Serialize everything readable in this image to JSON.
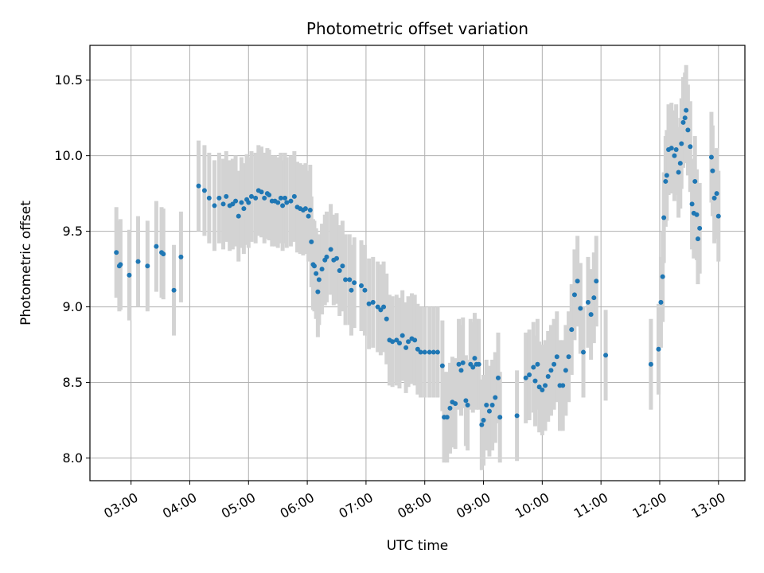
{
  "chart_data": {
    "type": "scatter",
    "title": "Photometric offset variation",
    "xlabel": "UTC time",
    "ylabel": "Photometric offset",
    "x_unit": "hours UTC",
    "xlim": [
      2.3,
      13.45
    ],
    "ylim": [
      7.85,
      10.73
    ],
    "grid": true,
    "x_ticks": [
      {
        "value": 3,
        "label": "03:00"
      },
      {
        "value": 4,
        "label": "04:00"
      },
      {
        "value": 5,
        "label": "05:00"
      },
      {
        "value": 6,
        "label": "06:00"
      },
      {
        "value": 7,
        "label": "07:00"
      },
      {
        "value": 8,
        "label": "08:00"
      },
      {
        "value": 9,
        "label": "09:00"
      },
      {
        "value": 10,
        "label": "10:00"
      },
      {
        "value": 11,
        "label": "11:00"
      },
      {
        "value": 12,
        "label": "12:00"
      },
      {
        "value": 13,
        "label": "13:00"
      }
    ],
    "y_ticks": [
      {
        "value": 8.0,
        "label": "8.0"
      },
      {
        "value": 8.5,
        "label": "8.5"
      },
      {
        "value": 9.0,
        "label": "9.0"
      },
      {
        "value": 9.5,
        "label": "9.5"
      },
      {
        "value": 10.0,
        "label": "10.0"
      },
      {
        "value": 10.5,
        "label": "10.5"
      }
    ],
    "colors": {
      "points": "#1f77b4",
      "error_bars": "#d3d3d3",
      "grid": "#b0b0b0"
    },
    "series": [
      {
        "error_bar_halfwidth": 0.3,
        "points": [
          [
            2.75,
            9.36
          ],
          [
            2.8,
            9.27
          ],
          [
            2.82,
            9.28
          ],
          [
            2.97,
            9.21
          ],
          [
            3.12,
            9.3
          ],
          [
            3.28,
            9.27
          ],
          [
            3.43,
            9.4
          ],
          [
            3.52,
            9.36
          ],
          [
            3.55,
            9.35
          ],
          [
            3.73,
            9.11
          ],
          [
            3.85,
            9.33
          ],
          [
            4.15,
            9.8
          ],
          [
            4.25,
            9.77
          ],
          [
            4.33,
            9.72
          ],
          [
            4.42,
            9.67
          ],
          [
            4.5,
            9.72
          ],
          [
            4.57,
            9.68
          ],
          [
            4.62,
            9.73
          ],
          [
            4.68,
            9.67
          ],
          [
            4.73,
            9.68
          ],
          [
            4.78,
            9.7
          ],
          [
            4.83,
            9.6
          ],
          [
            4.88,
            9.69
          ],
          [
            4.92,
            9.65
          ],
          [
            4.97,
            9.71
          ],
          [
            5.0,
            9.69
          ],
          [
            5.05,
            9.73
          ],
          [
            5.12,
            9.72
          ],
          [
            5.17,
            9.77
          ],
          [
            5.22,
            9.76
          ],
          [
            5.27,
            9.72
          ],
          [
            5.32,
            9.75
          ],
          [
            5.35,
            9.74
          ],
          [
            5.4,
            9.7
          ],
          [
            5.45,
            9.7
          ],
          [
            5.5,
            9.69
          ],
          [
            5.55,
            9.72
          ],
          [
            5.58,
            9.67
          ],
          [
            5.62,
            9.72
          ],
          [
            5.65,
            9.69
          ],
          [
            5.72,
            9.7
          ],
          [
            5.78,
            9.73
          ],
          [
            5.83,
            9.66
          ],
          [
            5.88,
            9.65
          ],
          [
            5.93,
            9.64
          ],
          [
            5.97,
            9.65
          ],
          [
            6.02,
            9.6
          ],
          [
            6.05,
            9.64
          ],
          [
            6.07,
            9.43
          ],
          [
            6.1,
            9.28
          ],
          [
            6.12,
            9.27
          ],
          [
            6.15,
            9.22
          ],
          [
            6.18,
            9.1
          ],
          [
            6.2,
            9.18
          ],
          [
            6.25,
            9.25
          ],
          [
            6.3,
            9.31
          ],
          [
            6.33,
            9.33
          ],
          [
            6.4,
            9.38
          ],
          [
            6.45,
            9.31
          ],
          [
            6.5,
            9.32
          ],
          [
            6.55,
            9.24
          ],
          [
            6.6,
            9.27
          ],
          [
            6.65,
            9.18
          ],
          [
            6.72,
            9.18
          ],
          [
            6.75,
            9.11
          ],
          [
            6.8,
            9.16
          ],
          [
            6.92,
            9.14
          ],
          [
            6.98,
            9.11
          ],
          [
            7.05,
            9.02
          ],
          [
            7.12,
            9.03
          ],
          [
            7.2,
            9.0
          ],
          [
            7.25,
            8.98
          ],
          [
            7.3,
            9.0
          ],
          [
            7.35,
            8.92
          ],
          [
            7.4,
            8.78
          ],
          [
            7.45,
            8.77
          ],
          [
            7.52,
            8.78
          ],
          [
            7.57,
            8.76
          ],
          [
            7.62,
            8.81
          ],
          [
            7.68,
            8.73
          ],
          [
            7.72,
            8.77
          ],
          [
            7.78,
            8.79
          ],
          [
            7.83,
            8.78
          ],
          [
            7.88,
            8.72
          ],
          [
            7.93,
            8.7
          ],
          [
            8.0,
            8.7
          ],
          [
            8.08,
            8.7
          ],
          [
            8.15,
            8.7
          ],
          [
            8.22,
            8.7
          ],
          [
            8.3,
            8.61
          ],
          [
            8.33,
            8.27
          ],
          [
            8.38,
            8.27
          ],
          [
            8.43,
            8.33
          ],
          [
            8.47,
            8.37
          ],
          [
            8.52,
            8.36
          ],
          [
            8.58,
            8.62
          ],
          [
            8.62,
            8.58
          ],
          [
            8.65,
            8.63
          ],
          [
            8.7,
            8.38
          ],
          [
            8.73,
            8.35
          ],
          [
            8.78,
            8.62
          ],
          [
            8.82,
            8.6
          ],
          [
            8.85,
            8.66
          ],
          [
            8.88,
            8.62
          ],
          [
            8.92,
            8.62
          ],
          [
            8.97,
            8.22
          ],
          [
            9.0,
            8.25
          ],
          [
            9.05,
            8.35
          ],
          [
            9.1,
            8.31
          ],
          [
            9.15,
            8.35
          ],
          [
            9.2,
            8.4
          ],
          [
            9.25,
            8.53
          ],
          [
            9.28,
            8.27
          ],
          [
            9.57,
            8.28
          ],
          [
            9.72,
            8.53
          ],
          [
            9.78,
            8.55
          ],
          [
            9.85,
            8.6
          ],
          [
            9.88,
            8.51
          ],
          [
            9.92,
            8.62
          ],
          [
            9.95,
            8.47
          ],
          [
            10.0,
            8.45
          ],
          [
            10.05,
            8.48
          ],
          [
            10.1,
            8.54
          ],
          [
            10.15,
            8.58
          ],
          [
            10.2,
            8.62
          ],
          [
            10.25,
            8.67
          ],
          [
            10.3,
            8.48
          ],
          [
            10.35,
            8.48
          ],
          [
            10.4,
            8.58
          ],
          [
            10.45,
            8.67
          ],
          [
            10.5,
            8.85
          ],
          [
            10.55,
            9.08
          ],
          [
            10.6,
            9.17
          ],
          [
            10.65,
            8.99
          ],
          [
            10.7,
            8.7
          ],
          [
            10.78,
            9.03
          ],
          [
            10.83,
            8.95
          ],
          [
            10.88,
            9.06
          ],
          [
            10.92,
            9.17
          ],
          [
            11.08,
            8.68
          ],
          [
            11.85,
            8.62
          ],
          [
            11.98,
            8.72
          ],
          [
            12.02,
            9.03
          ],
          [
            12.05,
            9.2
          ],
          [
            12.07,
            9.59
          ],
          [
            12.1,
            9.83
          ],
          [
            12.12,
            9.87
          ],
          [
            12.15,
            10.04
          ],
          [
            12.2,
            10.05
          ],
          [
            12.25,
            10.0
          ],
          [
            12.28,
            10.04
          ],
          [
            12.32,
            9.89
          ],
          [
            12.35,
            9.95
          ],
          [
            12.37,
            10.08
          ],
          [
            12.4,
            10.22
          ],
          [
            12.43,
            10.25
          ],
          [
            12.45,
            10.3
          ],
          [
            12.48,
            10.17
          ],
          [
            12.52,
            10.06
          ],
          [
            12.55,
            9.68
          ],
          [
            12.58,
            9.62
          ],
          [
            12.6,
            9.83
          ],
          [
            12.63,
            9.61
          ],
          [
            12.65,
            9.45
          ],
          [
            12.68,
            9.52
          ],
          [
            12.88,
            9.99
          ],
          [
            12.9,
            9.9
          ],
          [
            12.93,
            9.72
          ],
          [
            12.97,
            9.75
          ],
          [
            13.0,
            9.6
          ]
        ]
      }
    ]
  }
}
